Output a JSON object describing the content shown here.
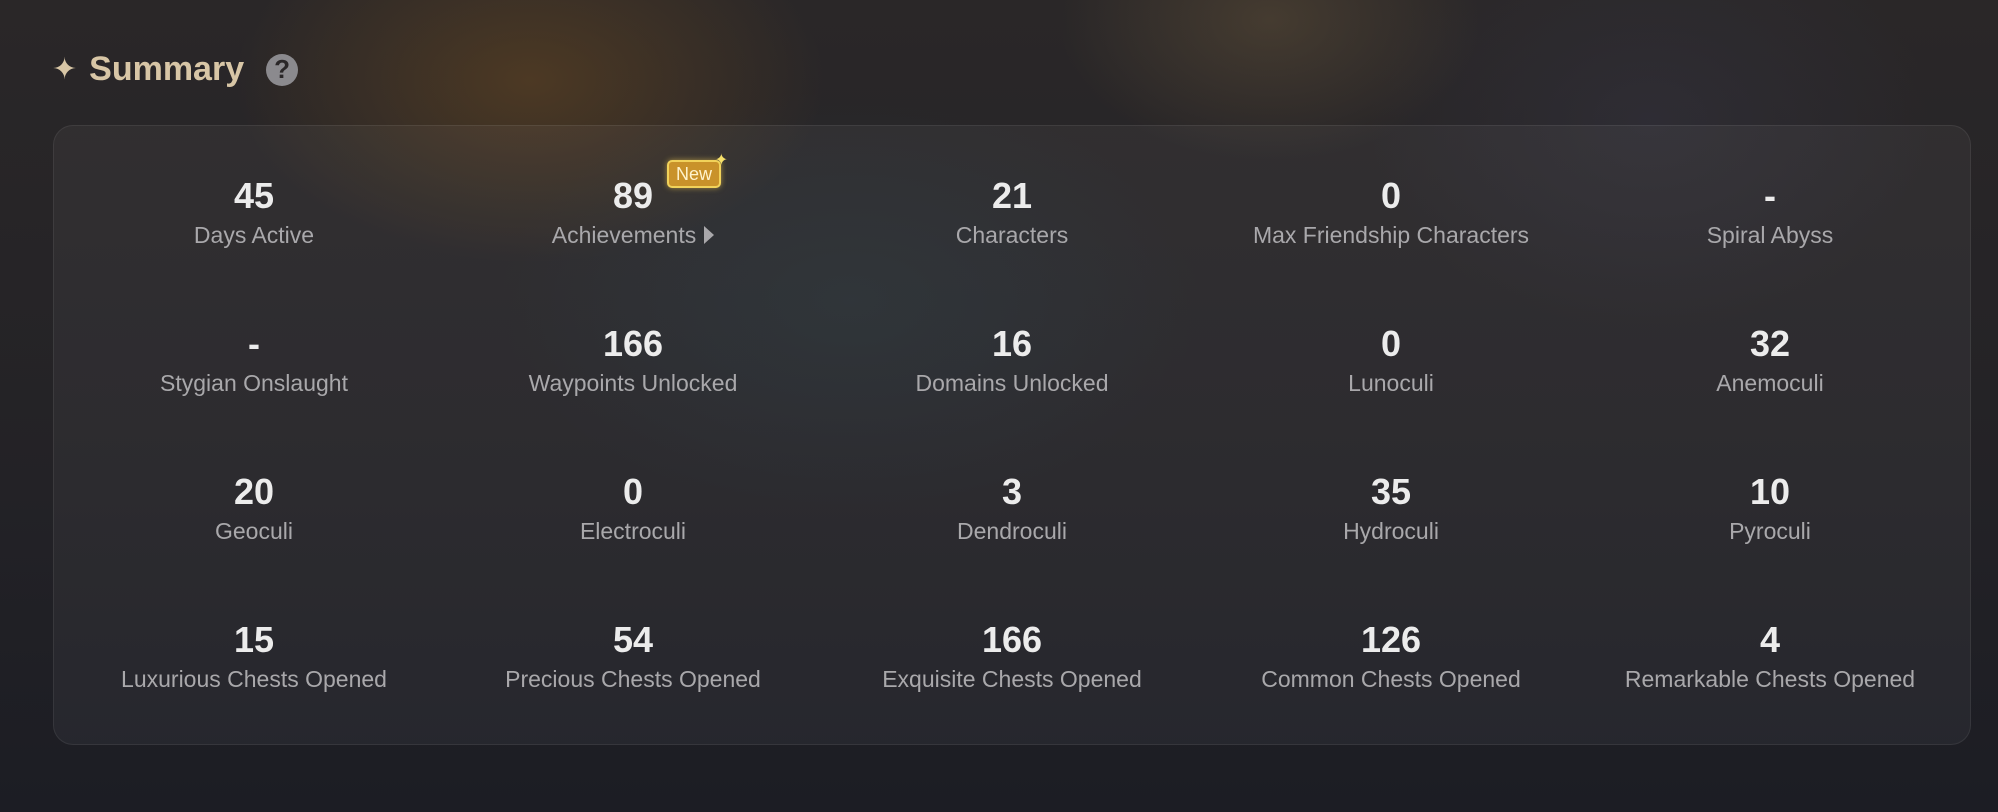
{
  "header": {
    "title": "Summary",
    "icon": "sparkle-icon",
    "help_icon": "question-icon"
  },
  "colors": {
    "title": "#d8c6a6",
    "badge": "#c9922a"
  },
  "stats": [
    {
      "value": "45",
      "label": "Days Active"
    },
    {
      "value": "89",
      "label": "Achievements",
      "badge": "New",
      "link": true
    },
    {
      "value": "21",
      "label": "Characters"
    },
    {
      "value": "0",
      "label": "Max Friendship Characters"
    },
    {
      "value": "-",
      "label": "Spiral Abyss"
    },
    {
      "value": "-",
      "label": "Stygian Onslaught"
    },
    {
      "value": "166",
      "label": "Waypoints Unlocked"
    },
    {
      "value": "16",
      "label": "Domains Unlocked"
    },
    {
      "value": "0",
      "label": "Lunoculi"
    },
    {
      "value": "32",
      "label": "Anemoculi"
    },
    {
      "value": "20",
      "label": "Geoculi"
    },
    {
      "value": "0",
      "label": "Electroculi"
    },
    {
      "value": "3",
      "label": "Dendroculi"
    },
    {
      "value": "35",
      "label": "Hydroculi"
    },
    {
      "value": "10",
      "label": "Pyroculi"
    },
    {
      "value": "15",
      "label": "Luxurious Chests Opened"
    },
    {
      "value": "54",
      "label": "Precious Chests Opened"
    },
    {
      "value": "166",
      "label": "Exquisite Chests Opened"
    },
    {
      "value": "126",
      "label": "Common Chests Opened"
    },
    {
      "value": "4",
      "label": "Remarkable Chests Opened"
    }
  ]
}
